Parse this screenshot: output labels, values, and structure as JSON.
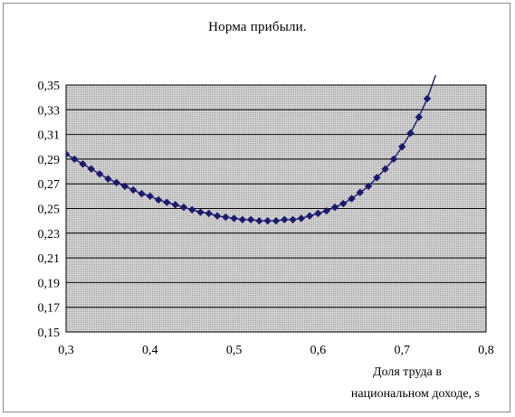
{
  "chart_data": {
    "type": "line",
    "title": "Норма прибыли.",
    "xlabel_line1": "Доля труда в",
    "xlabel_line2": "национальном доходе, s",
    "ylabel": "",
    "xlim": [
      0.3,
      0.8
    ],
    "ylim": [
      0.15,
      0.35
    ],
    "x_ticks": [
      "0,3",
      "0,4",
      "0,5",
      "0,6",
      "0,7",
      "0,8"
    ],
    "y_ticks": [
      "0,35",
      "0,33",
      "0,31",
      "0,29",
      "0,27",
      "0,25",
      "0,23",
      "0,21",
      "0,19",
      "0,17",
      "0,15"
    ],
    "grid": true,
    "background": "#c0c0c0",
    "line_color": "#1a1a6e",
    "marker": "diamond",
    "series": [
      {
        "x": [
          0.3,
          0.31,
          0.32,
          0.33,
          0.34,
          0.35,
          0.36,
          0.37,
          0.38,
          0.39,
          0.4,
          0.41,
          0.42,
          0.43,
          0.44,
          0.45,
          0.46,
          0.47,
          0.48,
          0.49,
          0.5,
          0.51,
          0.52,
          0.53,
          0.54,
          0.55,
          0.56,
          0.57,
          0.58,
          0.59,
          0.6,
          0.61,
          0.62,
          0.63,
          0.64,
          0.65,
          0.66,
          0.67,
          0.68,
          0.69,
          0.7,
          0.71,
          0.72,
          0.73
        ],
        "y": [
          0.294,
          0.29,
          0.286,
          0.282,
          0.278,
          0.274,
          0.271,
          0.268,
          0.265,
          0.262,
          0.26,
          0.257,
          0.255,
          0.253,
          0.251,
          0.249,
          0.247,
          0.246,
          0.244,
          0.243,
          0.242,
          0.241,
          0.241,
          0.24,
          0.24,
          0.24,
          0.241,
          0.241,
          0.242,
          0.244,
          0.246,
          0.248,
          0.251,
          0.254,
          0.258,
          0.263,
          0.268,
          0.275,
          0.282,
          0.29,
          0.3,
          0.311,
          0.324,
          0.339
        ]
      }
    ],
    "line_extent": {
      "x_start": 0.295,
      "y_start": 0.298,
      "x_end": 0.74,
      "y_end": 0.358
    }
  }
}
